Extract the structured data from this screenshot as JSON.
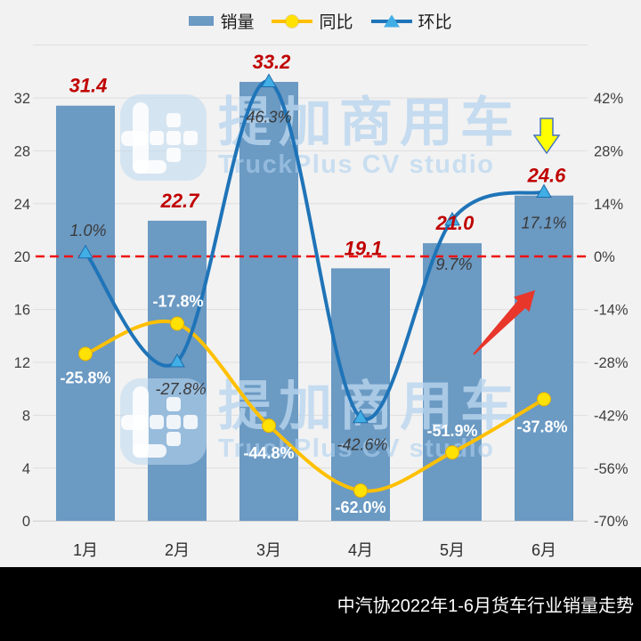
{
  "legend": {
    "items": [
      {
        "label": "销量",
        "marker": "bar-swatch"
      },
      {
        "label": "同比",
        "marker": "line-circle"
      },
      {
        "label": "环比",
        "marker": "line-triangle"
      }
    ]
  },
  "watermark": {
    "cjk": "提加商用车",
    "latin": "TruckPlus CV studio",
    "logo": "truckplus-logo"
  },
  "footer": {
    "title": "中汽协2022年1-6月货车行业销量走势"
  },
  "chart_data": {
    "type": "combo-bar-line",
    "title": "中汽协2022年1-6月货车行业销量走势",
    "legend_position": "top",
    "grid": "horizontal",
    "categories": [
      "1月",
      "2月",
      "3月",
      "4月",
      "5月",
      "6月"
    ],
    "series": [
      {
        "name": "销量",
        "type": "bar",
        "axis": "left",
        "values": [
          31.4,
          22.7,
          33.2,
          19.1,
          21.0,
          24.6
        ],
        "labels": [
          "31.4",
          "22.7",
          "33.2",
          "19.1",
          "21.0",
          "24.6"
        ]
      },
      {
        "name": "同比",
        "type": "line",
        "axis": "right",
        "values": [
          -25.8,
          -17.8,
          -44.8,
          -62.0,
          -51.9,
          -37.8
        ],
        "labels": [
          "-25.8%",
          "-17.8%",
          "-44.8%",
          "-62.0%",
          "-51.9%",
          "-37.8%"
        ]
      },
      {
        "name": "环比",
        "type": "line",
        "axis": "right",
        "values": [
          1.0,
          -27.8,
          46.3,
          -42.6,
          9.7,
          17.1
        ],
        "labels": [
          "1.0%",
          "-27.8%",
          "46.3%",
          "-42.6%",
          "9.7%",
          "17.1%"
        ]
      }
    ],
    "left_axis": {
      "ticks": [
        "32",
        "28",
        "24",
        "20",
        "16",
        "12",
        "8",
        "4",
        "0"
      ],
      "min": 0,
      "max": 36
    },
    "right_axis": {
      "ticks": [
        "42%",
        "28%",
        "14%",
        "0%",
        "-14%",
        "-28%",
        "-42%",
        "-56%",
        "-70%"
      ],
      "min": -70,
      "max": 56
    },
    "reference_line": {
      "left_value": 20,
      "right_value": "0%",
      "style": "dashed"
    },
    "annotations": [
      {
        "type": "block-arrow-down",
        "color": "#ffff00",
        "outline": "#4472c4"
      },
      {
        "type": "arrow-up-right",
        "color": "#e8362b"
      }
    ],
    "colors": {
      "background": "#f2f2f2",
      "grid": "#dedede",
      "axis_line": "#c9c9c9",
      "axis_text": "#3f3f3f",
      "bar": "#6b9ac3",
      "yoy_line": "#ffc000",
      "yoy_marker": "#ffe104",
      "yoy_label": "#ffffff",
      "mom_line": "#1f74b8",
      "mom_marker": "#41aee5",
      "mom_label": "#3a3a3a",
      "value_label": "#c00000",
      "ref_line": "#ee1111"
    }
  }
}
